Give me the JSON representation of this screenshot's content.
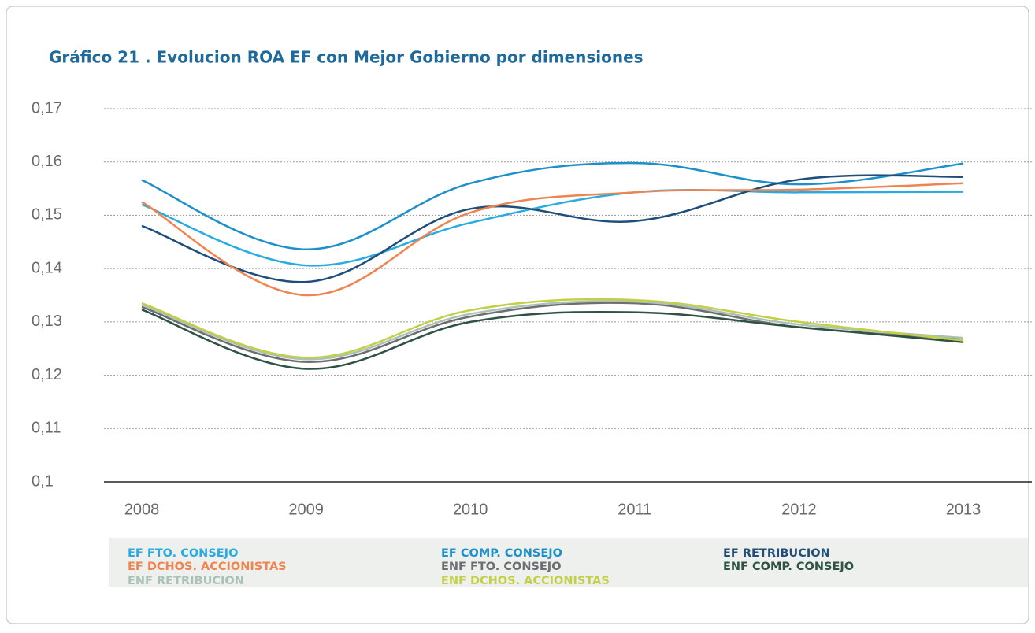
{
  "chart_data": {
    "type": "line",
    "title": "Gráfico 21 . Evolucion ROA EF con Mejor Gobierno por dimensiones",
    "categories": [
      "2008",
      "2009",
      "2010",
      "2011",
      "2012",
      "2013"
    ],
    "series": [
      {
        "name": "EF FTO. CONSEJO",
        "color": "#29abe2",
        "values": [
          0.152,
          0.1406,
          0.1486,
          0.1543,
          0.1543,
          0.1544
        ]
      },
      {
        "name": "EF COMP. CONSEJO",
        "color": "#1d8fc9",
        "values": [
          0.1566,
          0.1436,
          0.156,
          0.1598,
          0.1558,
          0.1597
        ]
      },
      {
        "name": "EF RETRIBUCION",
        "color": "#1e4e79",
        "values": [
          0.148,
          0.1375,
          0.1512,
          0.1489,
          0.1567,
          0.1572
        ]
      },
      {
        "name": "EF DCHOS. ACCIONISTAS",
        "color": "#ef8450",
        "values": [
          0.1525,
          0.135,
          0.1505,
          0.1543,
          0.1548,
          0.156
        ]
      },
      {
        "name": "ENF FTO. CONSEJO",
        "color": "#6d6e71",
        "values": [
          0.1328,
          0.1225,
          0.131,
          0.1335,
          0.129,
          0.1268
        ]
      },
      {
        "name": "ENF COMP. CONSEJO",
        "color": "#2e5243",
        "values": [
          0.1323,
          0.1212,
          0.13,
          0.1318,
          0.129,
          0.1262
        ]
      },
      {
        "name": "ENF RETRIBUCION",
        "color": "#a9c2b5",
        "values": [
          0.1332,
          0.123,
          0.1315,
          0.1338,
          0.1295,
          0.127
        ]
      },
      {
        "name": "ENF DCHOS. ACCIONISTAS",
        "color": "#c4cf48",
        "values": [
          0.1335,
          0.1233,
          0.1322,
          0.1341,
          0.13,
          0.1265
        ]
      }
    ],
    "ylim": [
      0.1,
      0.17
    ],
    "yticks": [
      {
        "value": 0.1,
        "label": "0,1"
      },
      {
        "value": 0.11,
        "label": "0,11"
      },
      {
        "value": 0.12,
        "label": "0,12"
      },
      {
        "value": 0.13,
        "label": "0,13"
      },
      {
        "value": 0.14,
        "label": "0,14"
      },
      {
        "value": 0.15,
        "label": "0,15"
      },
      {
        "value": 0.16,
        "label": "0,16"
      },
      {
        "value": 0.17,
        "label": "0,17"
      }
    ],
    "grid": true
  }
}
